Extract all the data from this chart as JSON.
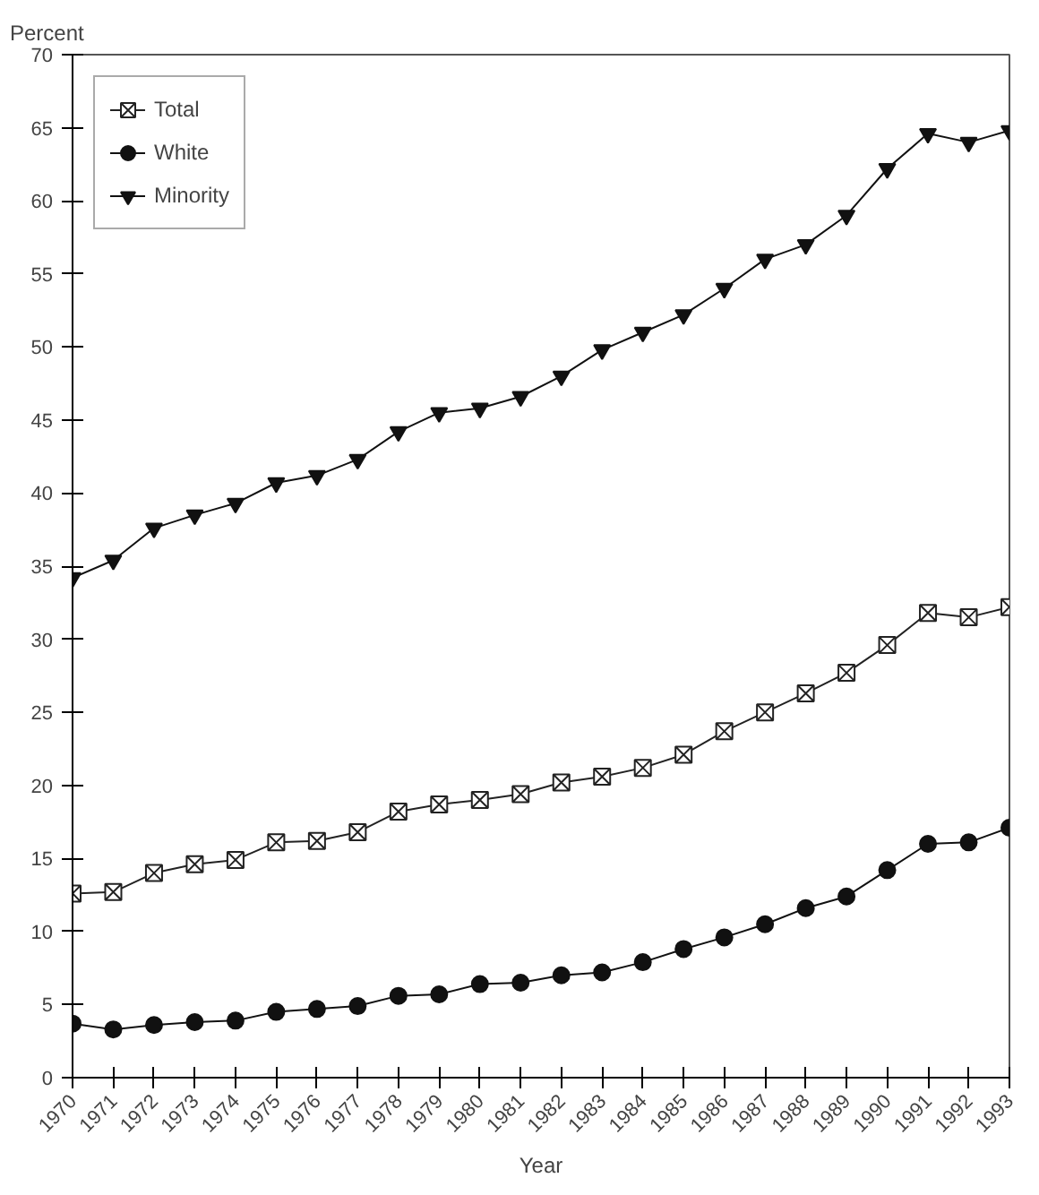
{
  "chart_data": {
    "type": "line",
    "xlabel": "Year",
    "ylabel": "Percent",
    "x": [
      1970,
      1971,
      1972,
      1973,
      1974,
      1975,
      1976,
      1977,
      1978,
      1979,
      1980,
      1981,
      1982,
      1983,
      1984,
      1985,
      1986,
      1987,
      1988,
      1989,
      1990,
      1991,
      1992,
      1993
    ],
    "xlim": [
      1970,
      1993
    ],
    "xticks": [
      1970,
      1971,
      1972,
      1973,
      1974,
      1975,
      1976,
      1977,
      1978,
      1979,
      1980,
      1981,
      1982,
      1983,
      1984,
      1985,
      1986,
      1987,
      1988,
      1989,
      1990,
      1991,
      1992,
      1993
    ],
    "ylim": [
      0,
      70
    ],
    "yticks": [
      0,
      5,
      10,
      15,
      20,
      25,
      30,
      35,
      40,
      45,
      50,
      55,
      60,
      65,
      70
    ],
    "grid": false,
    "legend": "top left",
    "line_style": "solid",
    "series": [
      {
        "name": "Total",
        "color": "#222222",
        "marker": "cross",
        "values": [
          12.6,
          12.7,
          14.0,
          14.6,
          14.9,
          16.1,
          16.2,
          16.8,
          18.2,
          18.7,
          19.0,
          19.4,
          20.2,
          20.6,
          21.2,
          22.1,
          23.7,
          25.0,
          26.3,
          27.7,
          29.6,
          31.8,
          31.5,
          32.2
        ]
      },
      {
        "name": "White",
        "color": "#111111",
        "marker": "circle",
        "values": [
          3.7,
          3.3,
          3.6,
          3.8,
          3.9,
          4.5,
          4.7,
          4.9,
          5.6,
          5.7,
          6.4,
          6.5,
          7.0,
          7.2,
          7.9,
          8.8,
          9.6,
          10.5,
          11.6,
          12.4,
          14.2,
          16.0,
          16.1,
          17.1
        ]
      },
      {
        "name": "Minority",
        "color": "#111111",
        "marker": "triangle",
        "values": [
          34.2,
          35.4,
          37.6,
          38.5,
          39.3,
          40.7,
          41.2,
          42.3,
          44.2,
          45.5,
          45.8,
          46.6,
          48.0,
          49.8,
          51.0,
          52.2,
          54.0,
          56.0,
          57.0,
          59.0,
          62.2,
          64.6,
          64.0,
          64.8
        ]
      }
    ]
  }
}
